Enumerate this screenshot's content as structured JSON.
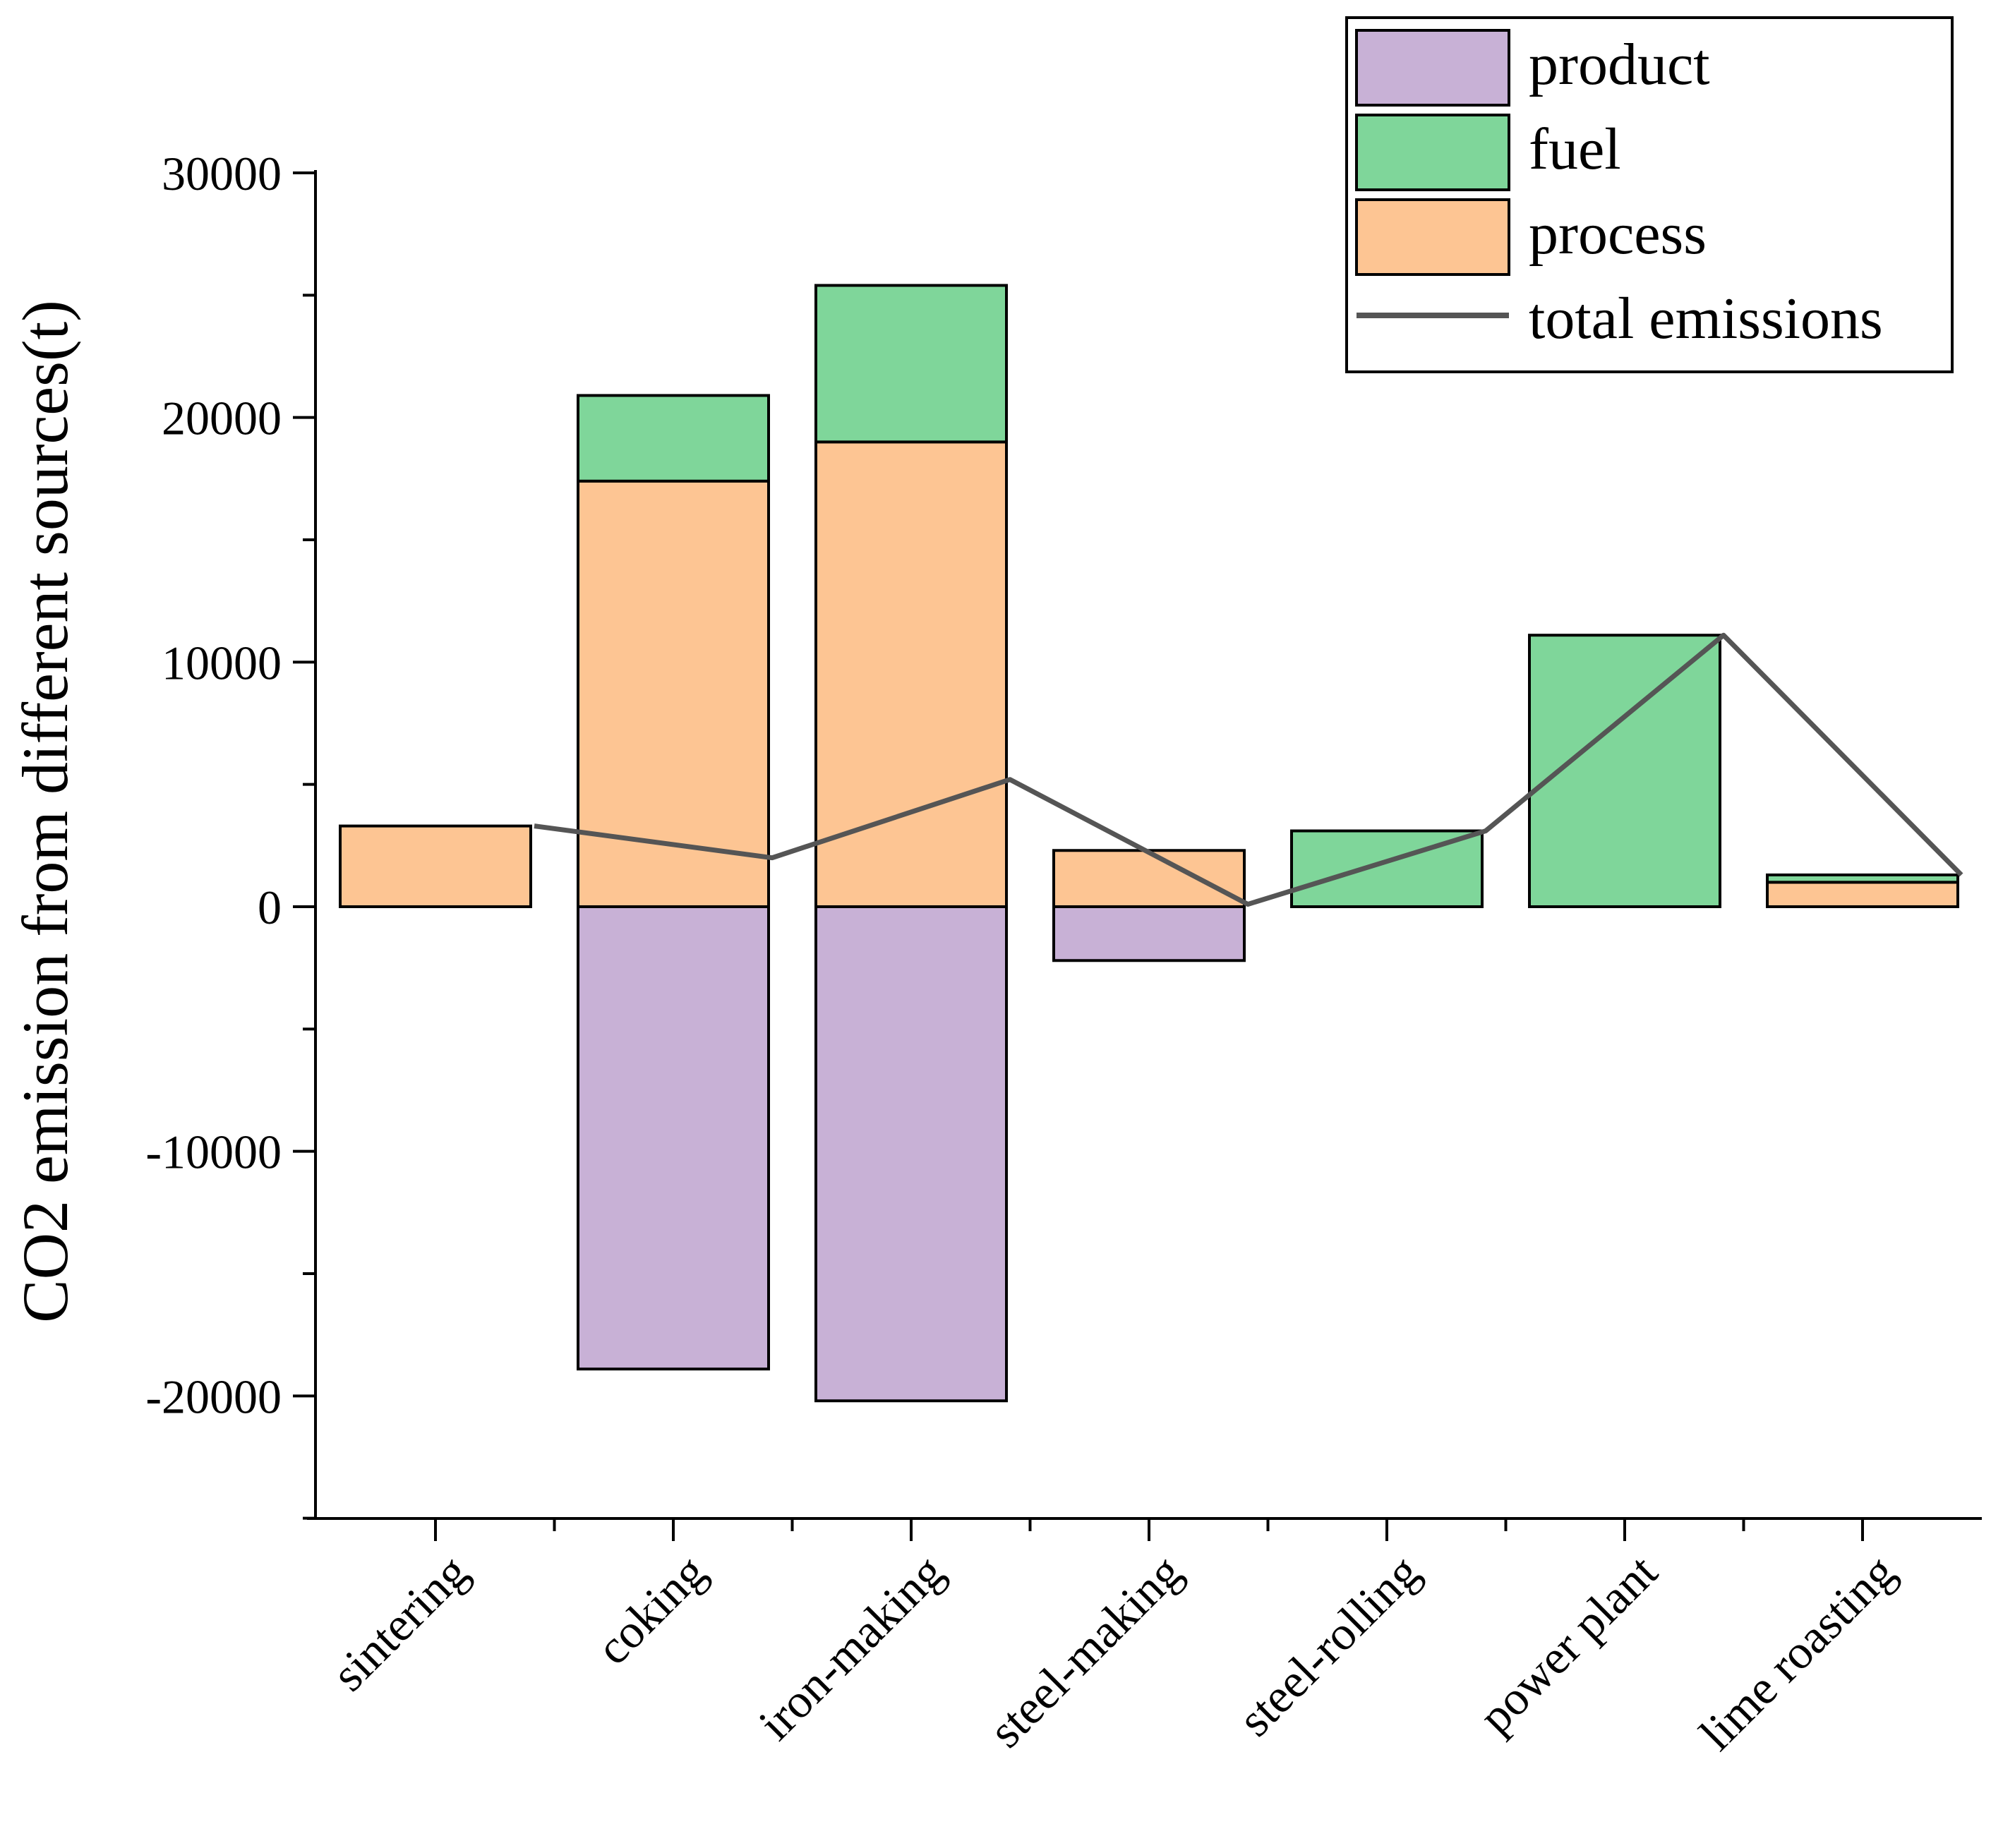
{
  "chart_data": {
    "type": "bar",
    "stacked": true,
    "title": "",
    "xlabel": "",
    "ylabel": "CO2 emission from different sources(t)",
    "ylim": [
      -25000,
      30000
    ],
    "yticks": [
      30000,
      20000,
      10000,
      0,
      -10000,
      -20000
    ],
    "ytick_labels": [
      "30000",
      "20000",
      "10000",
      "0",
      "-10000",
      "-20000"
    ],
    "categories": [
      "sintering",
      "coking",
      "iron-making",
      "steel-making",
      "steel-rolling",
      "power plant",
      "lime roasting"
    ],
    "series": [
      {
        "name": "product",
        "kind": "bar",
        "color": "#c8b1d6",
        "values": [
          0,
          -18900,
          -20200,
          -2200,
          0,
          0,
          0
        ]
      },
      {
        "name": "fuel",
        "kind": "bar",
        "color": "#7fd69a",
        "values": [
          0,
          3500,
          6400,
          0,
          3100,
          11100,
          300
        ]
      },
      {
        "name": "process",
        "kind": "bar",
        "color": "#fdc593",
        "values": [
          3300,
          17400,
          19000,
          2300,
          0,
          0,
          1000
        ]
      },
      {
        "name": "total emissions",
        "kind": "line",
        "color": "#555555",
        "values": [
          3300,
          2000,
          5200,
          100,
          3100,
          11100,
          1300
        ]
      }
    ],
    "legend_position": "top-right"
  }
}
